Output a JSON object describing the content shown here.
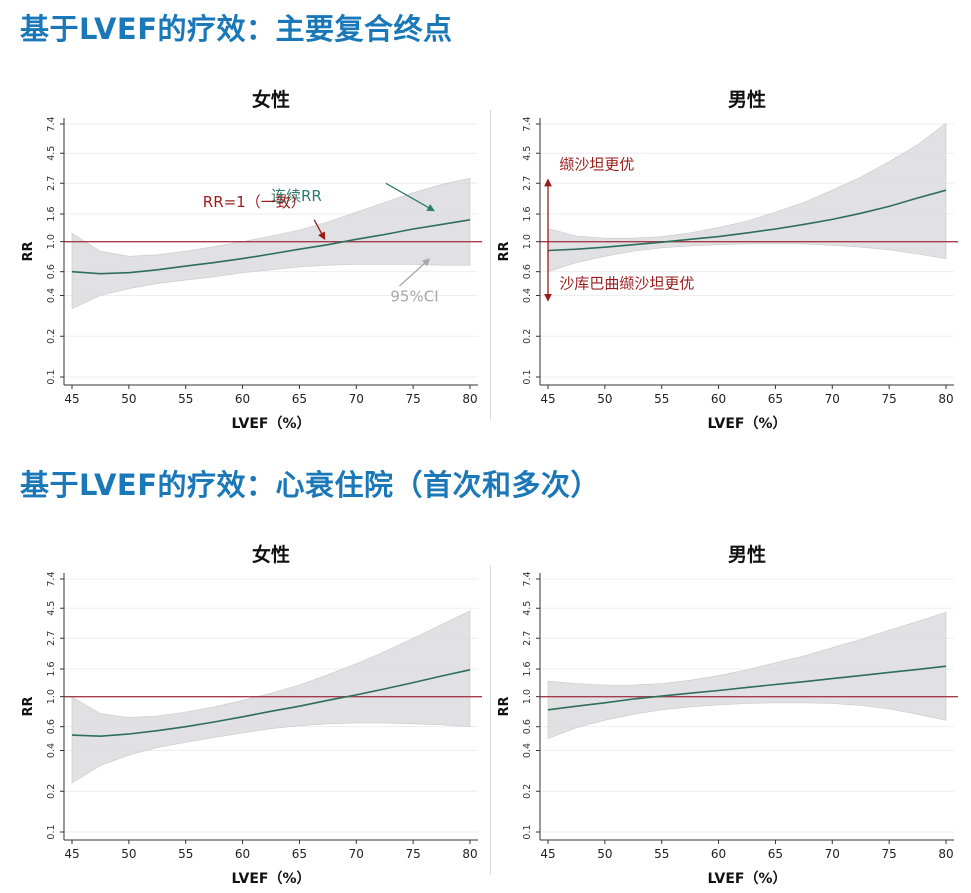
{
  "sections": [
    {
      "title": "基于LVEF的疗效：主要复合终点"
    },
    {
      "title": "基于LVEF的疗效：心衰住院（首次和多次）"
    }
  ],
  "colors": {
    "title": "#1b78b8",
    "curve": "#2e6e5a",
    "reference_line": "#a33c4c",
    "ci_band": "#d9d9dc",
    "annotation_dark_red": "#9b1b1b",
    "annotation_teal": "#2e7d6b",
    "annotation_gray": "#a8a8a8"
  },
  "chart_data": [
    {
      "type": "line",
      "title": "女性",
      "xlabel": "LVEF（%）",
      "ylabel": "RR",
      "xlim": [
        45,
        80
      ],
      "ylim": [
        0.1,
        7.4
      ],
      "yscale": "log",
      "x_ticks": [
        45,
        50,
        55,
        60,
        65,
        70,
        75,
        80
      ],
      "y_ticks": [
        "0.1",
        "0.2",
        "0.4",
        "0.6",
        "1.0",
        "1.6",
        "2.7",
        "4.5",
        "7.4"
      ],
      "reference_y": 1.0,
      "grid": true,
      "series": [
        {
          "role": "estimate",
          "x": [
            45,
            47.5,
            50,
            52.5,
            55,
            57.5,
            60,
            62.5,
            65,
            67.5,
            70,
            72.5,
            75,
            77.5,
            80
          ],
          "y": [
            0.6,
            0.58,
            0.59,
            0.62,
            0.66,
            0.7,
            0.75,
            0.81,
            0.88,
            0.95,
            1.04,
            1.13,
            1.24,
            1.34,
            1.45
          ]
        },
        {
          "role": "ci_upper",
          "x": [
            45,
            47.5,
            50,
            52.5,
            55,
            57.5,
            60,
            62.5,
            65,
            67.5,
            70,
            72.5,
            75,
            77.5,
            80
          ],
          "y": [
            1.15,
            0.85,
            0.78,
            0.8,
            0.85,
            0.92,
            1.0,
            1.1,
            1.22,
            1.4,
            1.65,
            1.95,
            2.3,
            2.65,
            2.95
          ]
        },
        {
          "role": "ci_lower",
          "x": [
            45,
            47.5,
            50,
            52.5,
            55,
            57.5,
            60,
            62.5,
            65,
            67.5,
            70,
            72.5,
            75,
            77.5,
            80
          ],
          "y": [
            0.32,
            0.4,
            0.45,
            0.49,
            0.52,
            0.55,
            0.59,
            0.62,
            0.65,
            0.67,
            0.68,
            0.68,
            0.68,
            0.67,
            0.67
          ]
        }
      ],
      "annotations": [
        {
          "text": "连续RR",
          "color": "#2e7d6b",
          "at": [
            62.5,
            2.0
          ],
          "arrow_from": [
            72.6,
            2.7
          ],
          "arrow_to": [
            76.8,
            1.7
          ]
        },
        {
          "text": "RR=1（一致）",
          "color": "#9b1b1b",
          "at": [
            56.5,
            1.8
          ],
          "arrow_from": [
            66.3,
            1.45
          ],
          "arrow_to": [
            67.2,
            1.05
          ]
        },
        {
          "text": "95%CI",
          "color": "#a8a8a8",
          "at": [
            73,
            0.36
          ],
          "arrow_from": [
            73.8,
            0.47
          ],
          "arrow_to": [
            76.4,
            0.74
          ]
        }
      ]
    },
    {
      "type": "line",
      "title": "男性",
      "xlabel": "LVEF（%）",
      "ylabel": "RR",
      "xlim": [
        45,
        80
      ],
      "ylim": [
        0.1,
        7.4
      ],
      "yscale": "log",
      "x_ticks": [
        45,
        50,
        55,
        60,
        65,
        70,
        75,
        80
      ],
      "y_ticks": [
        "0.1",
        "0.2",
        "0.4",
        "0.6",
        "1.0",
        "1.6",
        "2.7",
        "4.5",
        "7.4"
      ],
      "reference_y": 1.0,
      "grid": true,
      "series": [
        {
          "role": "estimate",
          "x": [
            45,
            47.5,
            50,
            52.5,
            55,
            57.5,
            60,
            62.5,
            65,
            67.5,
            70,
            72.5,
            75,
            77.5,
            80
          ],
          "y": [
            0.86,
            0.88,
            0.91,
            0.95,
            0.99,
            1.04,
            1.09,
            1.16,
            1.24,
            1.34,
            1.46,
            1.62,
            1.82,
            2.1,
            2.4
          ]
        },
        {
          "role": "ci_upper",
          "x": [
            45,
            47.5,
            50,
            52.5,
            55,
            57.5,
            60,
            62.5,
            65,
            67.5,
            70,
            72.5,
            75,
            77.5,
            80
          ],
          "y": [
            1.25,
            1.1,
            1.06,
            1.06,
            1.09,
            1.16,
            1.27,
            1.42,
            1.65,
            1.95,
            2.4,
            3.0,
            3.9,
            5.2,
            7.5
          ]
        },
        {
          "role": "ci_lower",
          "x": [
            45,
            47.5,
            50,
            52.5,
            55,
            57.5,
            60,
            62.5,
            65,
            67.5,
            70,
            72.5,
            75,
            77.5,
            80
          ],
          "y": [
            0.6,
            0.7,
            0.78,
            0.85,
            0.9,
            0.93,
            0.95,
            0.96,
            0.96,
            0.96,
            0.94,
            0.91,
            0.87,
            0.81,
            0.75
          ]
        }
      ],
      "annotations": [
        {
          "text": "缬沙坦更优",
          "color": "#9b1b1b",
          "at": [
            46,
            3.4
          ],
          "arrow_from": [
            45,
            1.0
          ],
          "arrow_to": [
            45,
            2.85
          ]
        },
        {
          "text": "沙库巴曲缬沙坦更优",
          "color": "#9b1b1b",
          "at": [
            46,
            0.45
          ],
          "arrow_from": [
            45,
            1.0
          ],
          "arrow_to": [
            45,
            0.37
          ]
        }
      ]
    },
    {
      "type": "line",
      "title": "女性",
      "xlabel": "LVEF（%）",
      "ylabel": "RR",
      "xlim": [
        45,
        80
      ],
      "ylim": [
        0.1,
        7.4
      ],
      "yscale": "log",
      "x_ticks": [
        45,
        50,
        55,
        60,
        65,
        70,
        75,
        80
      ],
      "y_ticks": [
        "0.1",
        "0.2",
        "0.4",
        "0.6",
        "1.0",
        "1.6",
        "2.7",
        "4.5",
        "7.4"
      ],
      "reference_y": 1.0,
      "grid": true,
      "series": [
        {
          "role": "estimate",
          "x": [
            45,
            47.5,
            50,
            52.5,
            55,
            57.5,
            60,
            62.5,
            65,
            67.5,
            70,
            72.5,
            75,
            77.5,
            80
          ],
          "y": [
            0.52,
            0.51,
            0.53,
            0.56,
            0.6,
            0.65,
            0.71,
            0.78,
            0.85,
            0.94,
            1.03,
            1.14,
            1.27,
            1.42,
            1.58
          ]
        },
        {
          "role": "ci_upper",
          "x": [
            45,
            47.5,
            50,
            52.5,
            55,
            57.5,
            60,
            62.5,
            65,
            67.5,
            70,
            72.5,
            75,
            77.5,
            80
          ],
          "y": [
            1.0,
            0.75,
            0.7,
            0.72,
            0.77,
            0.84,
            0.94,
            1.06,
            1.22,
            1.45,
            1.75,
            2.15,
            2.7,
            3.4,
            4.3
          ]
        },
        {
          "role": "ci_lower",
          "x": [
            45,
            47.5,
            50,
            52.5,
            55,
            57.5,
            60,
            62.5,
            65,
            67.5,
            70,
            72.5,
            75,
            77.5,
            80
          ],
          "y": [
            0.23,
            0.31,
            0.37,
            0.42,
            0.46,
            0.5,
            0.54,
            0.58,
            0.61,
            0.63,
            0.64,
            0.64,
            0.63,
            0.62,
            0.6
          ]
        }
      ],
      "annotations": []
    },
    {
      "type": "line",
      "title": "男性",
      "xlabel": "LVEF（%）",
      "ylabel": "RR",
      "xlim": [
        45,
        80
      ],
      "ylim": [
        0.1,
        7.4
      ],
      "yscale": "log",
      "x_ticks": [
        45,
        50,
        55,
        60,
        65,
        70,
        75,
        80
      ],
      "y_ticks": [
        "0.1",
        "0.2",
        "0.4",
        "0.6",
        "1.0",
        "1.6",
        "2.7",
        "4.5",
        "7.4"
      ],
      "reference_y": 1.0,
      "grid": true,
      "series": [
        {
          "role": "estimate",
          "x": [
            45,
            47.5,
            50,
            52.5,
            55,
            57.5,
            60,
            62.5,
            65,
            67.5,
            70,
            72.5,
            75,
            77.5,
            80
          ],
          "y": [
            0.8,
            0.85,
            0.9,
            0.96,
            1.01,
            1.06,
            1.11,
            1.17,
            1.23,
            1.29,
            1.36,
            1.43,
            1.51,
            1.59,
            1.68
          ]
        },
        {
          "role": "ci_upper",
          "x": [
            45,
            47.5,
            50,
            52.5,
            55,
            57.5,
            60,
            62.5,
            65,
            67.5,
            70,
            72.5,
            75,
            77.5,
            80
          ],
          "y": [
            1.3,
            1.25,
            1.22,
            1.22,
            1.25,
            1.32,
            1.43,
            1.58,
            1.78,
            2.0,
            2.3,
            2.65,
            3.1,
            3.6,
            4.2
          ]
        },
        {
          "role": "ci_lower",
          "x": [
            45,
            47.5,
            50,
            52.5,
            55,
            57.5,
            60,
            62.5,
            65,
            67.5,
            70,
            72.5,
            75,
            77.5,
            80
          ],
          "y": [
            0.49,
            0.59,
            0.67,
            0.74,
            0.8,
            0.84,
            0.87,
            0.89,
            0.9,
            0.9,
            0.89,
            0.86,
            0.81,
            0.74,
            0.67
          ]
        }
      ],
      "annotations": []
    }
  ]
}
